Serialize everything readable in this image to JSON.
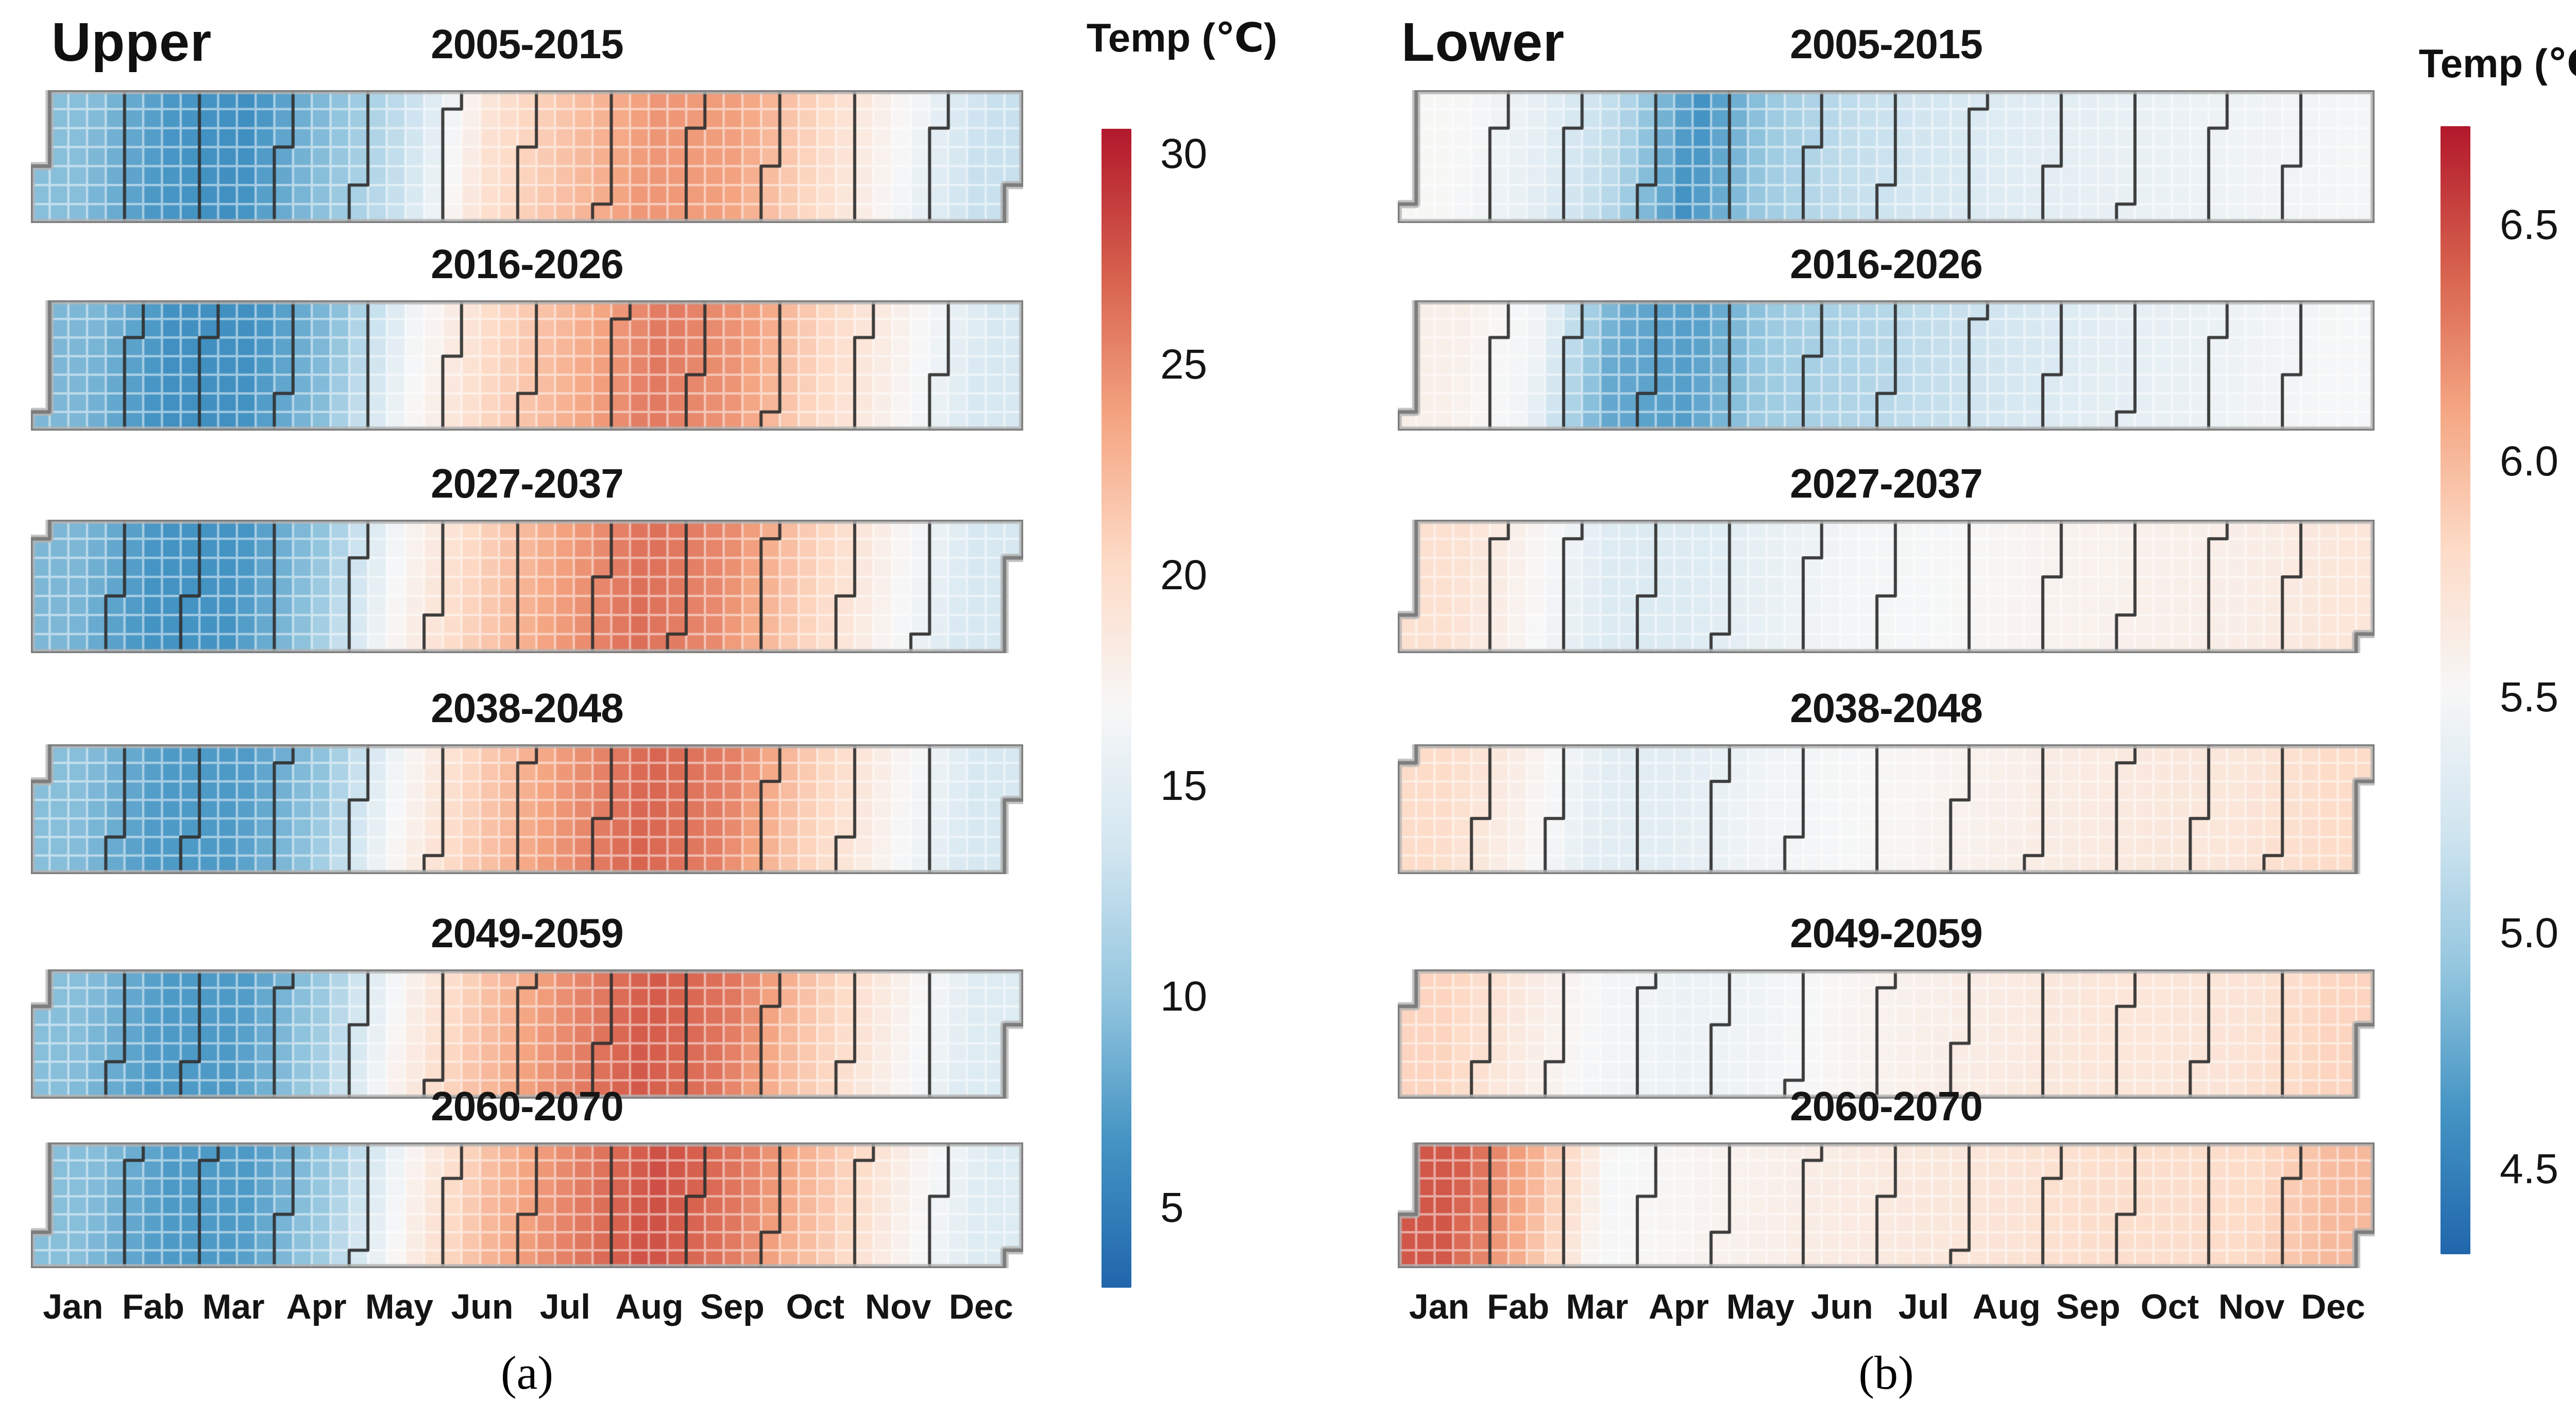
{
  "figure_title": "",
  "months_note": "month axis labels exactly as printed in the figure (includes the 'Fab' typo)",
  "chart_data": [
    {
      "type": "heatmap",
      "panel": "a",
      "title": "Upper",
      "caption": "(a)",
      "colorbar_title": "Temp (℃)",
      "colorbar_ticks": [
        30,
        25,
        20,
        15,
        10,
        5
      ],
      "color_domain": [
        3.1,
        30.6
      ],
      "colormap_stops": [
        "#2166ac",
        "#4393c3",
        "#92c5de",
        "#d1e5f0",
        "#f7f7f7",
        "#fddbc7",
        "#f4a582",
        "#d6604d",
        "#b2182b"
      ],
      "months": [
        "Jan",
        "Fab",
        "Mar",
        "Apr",
        "May",
        "Jun",
        "Jul",
        "Aug",
        "Sep",
        "Oct",
        "Nov",
        "Dec"
      ],
      "unit": "degC",
      "series": [
        {
          "name": "2005-2015",
          "values": [
            9.5,
            6.8,
            6.2,
            9.5,
            13.0,
            19.5,
            22.0,
            24.5,
            24.0,
            20.5,
            17.0,
            13.0
          ]
        },
        {
          "name": "2016-2026",
          "values": [
            9.0,
            6.3,
            6.3,
            9.5,
            16.5,
            20.5,
            23.0,
            26.0,
            24.5,
            20.5,
            17.5,
            14.0
          ]
        },
        {
          "name": "2027-2037",
          "values": [
            9.0,
            6.5,
            6.5,
            10.0,
            17.0,
            21.0,
            24.0,
            26.5,
            25.0,
            21.0,
            17.5,
            14.0
          ]
        },
        {
          "name": "2038-2048",
          "values": [
            9.5,
            7.0,
            7.0,
            10.0,
            17.0,
            21.5,
            24.5,
            27.0,
            25.5,
            21.0,
            17.5,
            14.0
          ]
        },
        {
          "name": "2049-2059",
          "values": [
            9.5,
            7.0,
            7.0,
            10.5,
            17.5,
            22.0,
            25.0,
            27.5,
            26.0,
            21.5,
            18.0,
            14.5
          ]
        },
        {
          "name": "2060-2070",
          "values": [
            9.5,
            7.0,
            7.0,
            10.5,
            17.5,
            22.5,
            25.5,
            28.0,
            26.0,
            22.0,
            18.0,
            14.5
          ]
        }
      ]
    },
    {
      "type": "heatmap",
      "panel": "b",
      "title": "Lower",
      "caption": "(b)",
      "colorbar_title": "Temp (℃)",
      "colorbar_ticks": [
        6.5,
        6.0,
        5.5,
        5.0,
        4.5
      ],
      "color_domain": [
        4.32,
        6.71
      ],
      "colormap_stops": [
        "#2166ac",
        "#4393c3",
        "#92c5de",
        "#d1e5f0",
        "#f7f7f7",
        "#fddbc7",
        "#f4a582",
        "#d6604d",
        "#b2182b"
      ],
      "months": [
        "Jan",
        "Fab",
        "Mar",
        "Apr",
        "May",
        "Jun",
        "Jul",
        "Aug",
        "Sep",
        "Oct",
        "Nov",
        "Dec"
      ],
      "unit": "degC",
      "series": [
        {
          "name": "2005-2015",
          "values": [
            5.52,
            5.38,
            5.12,
            4.6,
            4.98,
            5.15,
            5.25,
            5.33,
            5.38,
            5.42,
            5.45,
            5.48
          ]
        },
        {
          "name": "2016-2026",
          "values": [
            5.6,
            5.45,
            4.75,
            4.68,
            4.98,
            5.05,
            5.15,
            5.25,
            5.35,
            5.4,
            5.45,
            5.5
          ]
        },
        {
          "name": "2027-2037",
          "values": [
            5.75,
            5.55,
            5.3,
            5.3,
            5.4,
            5.48,
            5.5,
            5.55,
            5.58,
            5.6,
            5.62,
            5.7
          ]
        },
        {
          "name": "2038-2048",
          "values": [
            5.8,
            5.6,
            5.35,
            5.35,
            5.45,
            5.5,
            5.55,
            5.6,
            5.65,
            5.68,
            5.7,
            5.8
          ]
        },
        {
          "name": "2049-2059",
          "values": [
            5.85,
            5.65,
            5.48,
            5.42,
            5.45,
            5.55,
            5.6,
            5.65,
            5.7,
            5.7,
            5.72,
            5.85
          ]
        },
        {
          "name": "2060-2070",
          "values": [
            6.45,
            6.05,
            5.5,
            5.55,
            5.6,
            5.65,
            5.68,
            5.72,
            5.78,
            5.78,
            5.8,
            6.0
          ]
        }
      ]
    }
  ]
}
